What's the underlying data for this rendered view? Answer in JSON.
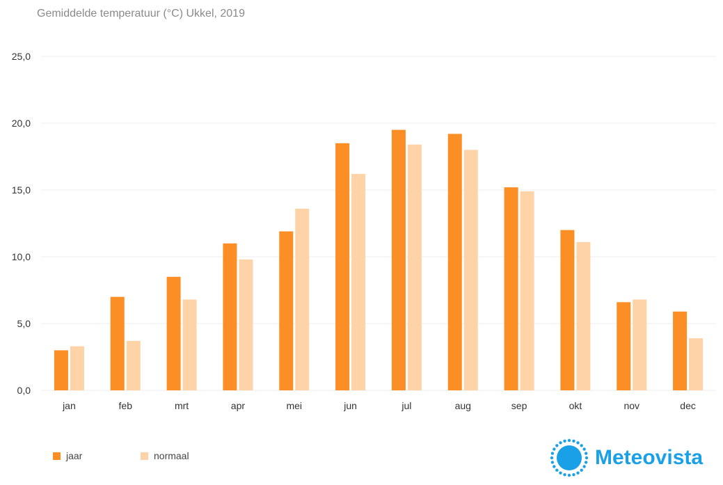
{
  "chart_title": "Gemiddelde temperatuur (°C) Ukkel, 2019",
  "colors": {
    "jaar": "#fb8e25",
    "normaal": "#fdd3a7",
    "grid": "#ececec",
    "brand": "#1aa0e6"
  },
  "brand": {
    "name": "Meteovista",
    "logo_icon": "sun-icon"
  },
  "chart_data": {
    "type": "bar",
    "title": "Gemiddelde temperatuur (°C) Ukkel, 2019",
    "categories": [
      "jan",
      "feb",
      "mrt",
      "apr",
      "mei",
      "jun",
      "jul",
      "aug",
      "sep",
      "okt",
      "nov",
      "dec"
    ],
    "series": [
      {
        "name": "jaar",
        "values": [
          3.0,
          7.0,
          8.5,
          11.0,
          11.9,
          18.5,
          19.5,
          19.2,
          15.2,
          12.0,
          6.6,
          5.9
        ]
      },
      {
        "name": "normaal",
        "values": [
          3.3,
          3.7,
          6.8,
          9.8,
          13.6,
          16.2,
          18.4,
          18.0,
          14.9,
          11.1,
          6.8,
          3.9
        ]
      }
    ],
    "ylim": [
      0,
      25
    ],
    "yticks": [
      "0,0",
      "5,0",
      "10,0",
      "15,0",
      "20,0",
      "25,0"
    ],
    "ytick_values": [
      0,
      5,
      10,
      15,
      20,
      25
    ],
    "grid": true,
    "legend_position": "bottom-left"
  }
}
